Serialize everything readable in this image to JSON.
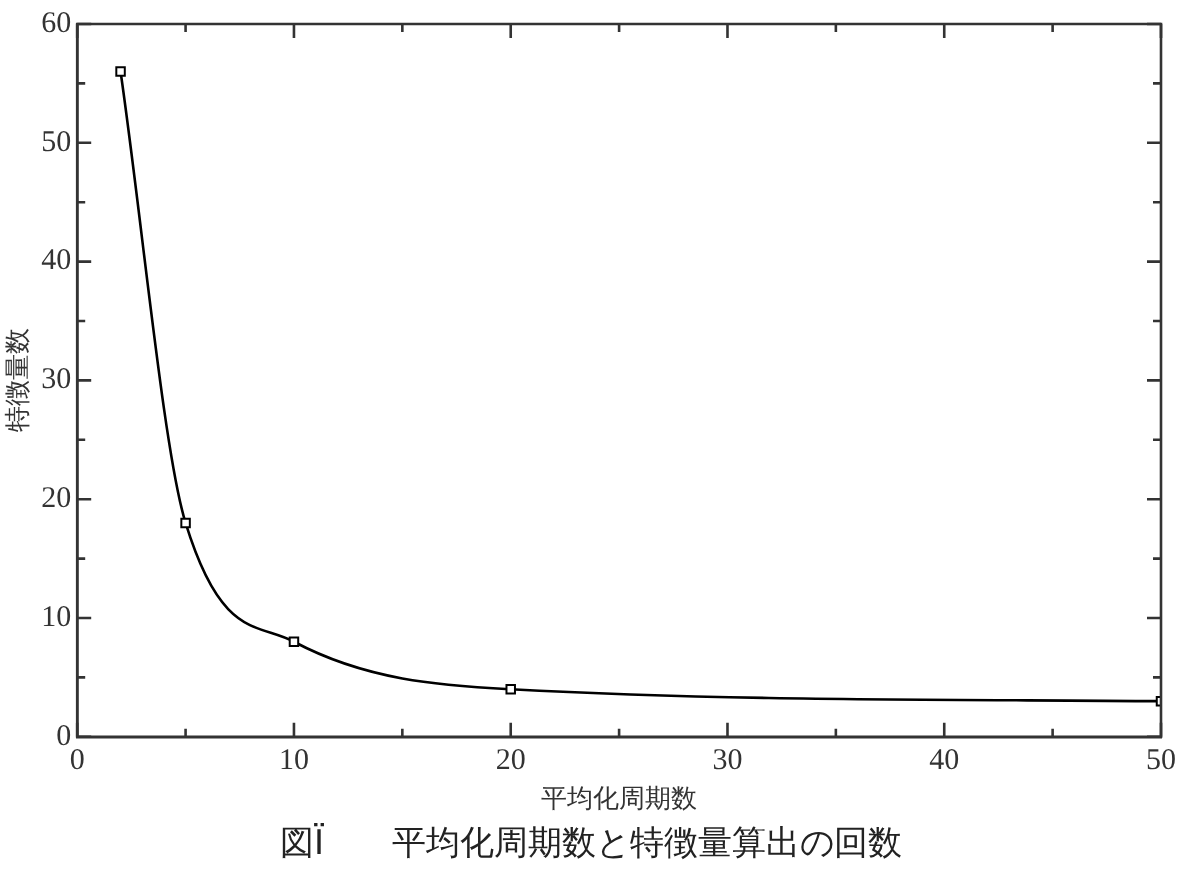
{
  "chart_data": {
    "type": "line",
    "xlabel": "平均化周期数",
    "ylabel": "特徴量数",
    "annotations": [
      "図Ï　　平均化周期数と特徴量算出の回数"
    ],
    "x": [
      2,
      5,
      10,
      20,
      50
    ],
    "series": [
      {
        "color": "#000000",
        "values": [
          56,
          18,
          8,
          4,
          3
        ]
      }
    ],
    "marker": "square",
    "line_style": "solid",
    "legend": false,
    "grid": false,
    "xlim": [
      0,
      50
    ],
    "xticks": [
      0,
      {
        "value": 5,
        "label": null
      },
      10,
      {
        "value": 15,
        "label": null
      },
      20,
      {
        "value": 25,
        "label": null
      },
      30,
      {
        "value": 35,
        "label": null
      },
      40,
      {
        "value": 45,
        "label": null
      },
      50
    ],
    "ylim": [
      0,
      60
    ],
    "yticks": [
      0,
      {
        "value": 5,
        "label": null
      },
      10,
      {
        "value": 15,
        "label": null
      },
      20,
      {
        "value": 25,
        "label": null
      },
      30,
      {
        "value": 35,
        "label": null
      },
      40,
      {
        "value": 45,
        "label": null
      },
      50,
      {
        "value": 55,
        "label": null
      },
      60
    ]
  }
}
